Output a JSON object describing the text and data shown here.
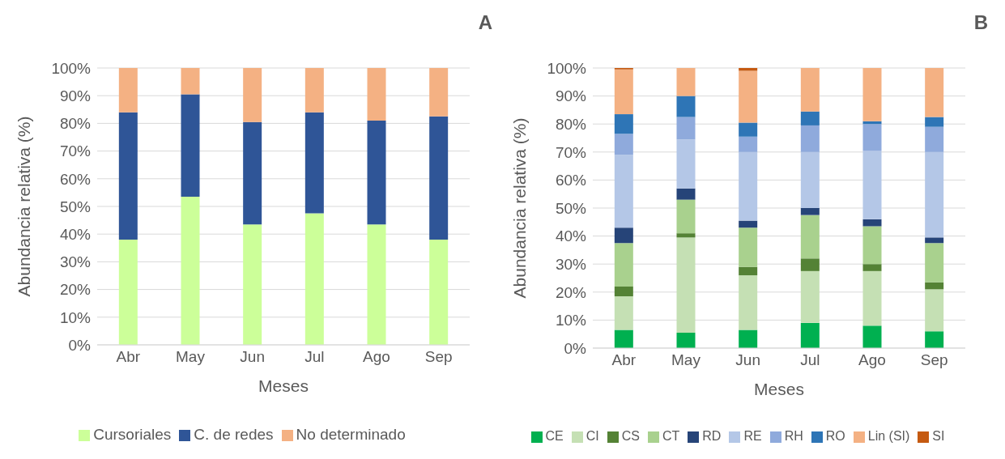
{
  "chart_data": [
    {
      "type": "bar",
      "title": "A",
      "stacked": true,
      "xlabel": "Meses",
      "ylabel": "Abundancia relativa (%)",
      "categories": [
        "Abr",
        "May",
        "Jun",
        "Jul",
        "Ago",
        "Sep"
      ],
      "ylim": [
        0,
        100
      ],
      "yticks": [
        {
          "value": 0,
          "label": "0%"
        },
        {
          "value": 10,
          "label": "10%"
        },
        {
          "value": 20,
          "label": "20%"
        },
        {
          "value": 30,
          "label": "30%"
        },
        {
          "value": 40,
          "label": "40%"
        },
        {
          "value": 50,
          "label": "50%"
        },
        {
          "value": 60,
          "label": "60%"
        },
        {
          "value": 70,
          "label": "70%"
        },
        {
          "value": 80,
          "label": "80%"
        },
        {
          "value": 90,
          "label": "90%"
        },
        {
          "value": 100,
          "label": "100%"
        }
      ],
      "grid": "y",
      "legend": "bottom",
      "series": [
        {
          "name": "Cursoriales",
          "color": "#ccff99",
          "values": [
            38,
            53.5,
            43.5,
            47.5,
            43.5,
            38
          ]
        },
        {
          "name": "C. de redes",
          "color": "#2f5597",
          "values": [
            46,
            37,
            37,
            36.5,
            37.5,
            44.5
          ]
        },
        {
          "name": "No determinado",
          "color": "#f4b183",
          "values": [
            16,
            9.5,
            19.5,
            16,
            19,
            17.5
          ]
        }
      ]
    },
    {
      "type": "bar",
      "title": "B",
      "stacked": true,
      "xlabel": "Meses",
      "ylabel": "Abundancia relativa (%)",
      "categories": [
        "Abr",
        "May",
        "Jun",
        "Jul",
        "Ago",
        "Sep"
      ],
      "ylim": [
        0,
        100
      ],
      "yticks": [
        {
          "value": 0,
          "label": "0%"
        },
        {
          "value": 10,
          "label": "10%"
        },
        {
          "value": 20,
          "label": "20%"
        },
        {
          "value": 30,
          "label": "30%"
        },
        {
          "value": 40,
          "label": "40%"
        },
        {
          "value": 50,
          "label": "50%"
        },
        {
          "value": 60,
          "label": "60%"
        },
        {
          "value": 70,
          "label": "70%"
        },
        {
          "value": 80,
          "label": "80%"
        },
        {
          "value": 90,
          "label": "90%"
        },
        {
          "value": 100,
          "label": "100%"
        }
      ],
      "grid": "y",
      "legend": "bottom",
      "series": [
        {
          "name": "CE",
          "color": "#00b050",
          "values": [
            6.5,
            5.5,
            6.5,
            9,
            8,
            6
          ]
        },
        {
          "name": "CI",
          "color": "#c5e0b4",
          "values": [
            12,
            34,
            19.5,
            18.5,
            19.5,
            15
          ]
        },
        {
          "name": "CS",
          "color": "#548235",
          "values": [
            3.5,
            1.5,
            3,
            4.5,
            2.5,
            2.5
          ]
        },
        {
          "name": "CT",
          "color": "#a9d18e",
          "values": [
            15.5,
            12,
            14,
            15.5,
            13.5,
            14
          ]
        },
        {
          "name": "RD",
          "color": "#264478",
          "values": [
            5.5,
            4,
            2.5,
            2.5,
            2.5,
            2
          ]
        },
        {
          "name": "RE",
          "color": "#b4c7e7",
          "values": [
            26,
            17.5,
            24.5,
            20,
            24.5,
            30.5
          ]
        },
        {
          "name": "RH",
          "color": "#8faadc",
          "values": [
            7.5,
            8,
            5.5,
            9.5,
            9.5,
            9
          ]
        },
        {
          "name": "RO",
          "color": "#2e75b6",
          "values": [
            7,
            7.5,
            5,
            5,
            1,
            3.5
          ]
        },
        {
          "name": "Lin (SI)",
          "color": "#f4b183",
          "values": [
            16,
            10,
            18.5,
            15.5,
            19,
            17.5
          ]
        },
        {
          "name": "SI",
          "color": "#c55a11",
          "values": [
            0.5,
            0,
            1,
            0,
            0,
            0
          ]
        }
      ]
    }
  ]
}
